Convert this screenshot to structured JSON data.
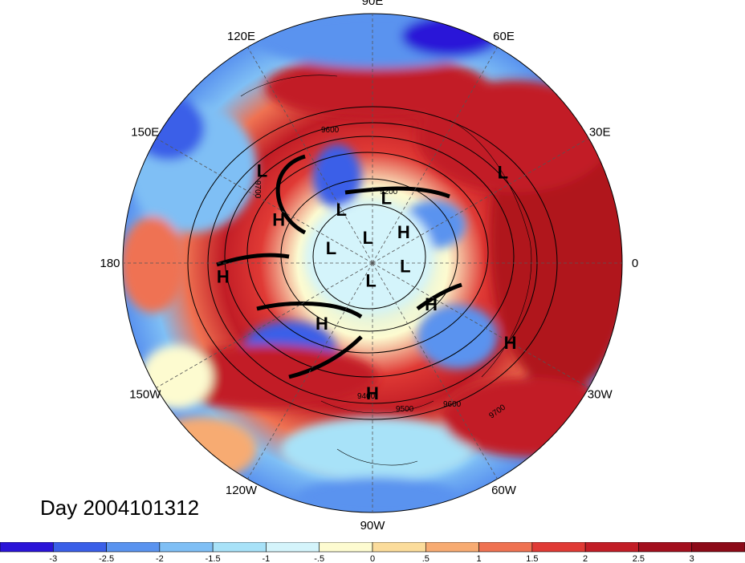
{
  "map": {
    "projection": "north polar stereographic",
    "longitude_labels": [
      {
        "text": "90E",
        "lon": 90
      },
      {
        "text": "60E",
        "lon": 60
      },
      {
        "text": "30E",
        "lon": 30
      },
      {
        "text": "0",
        "lon": 0
      },
      {
        "text": "30W",
        "lon": -30
      },
      {
        "text": "60W",
        "lon": -60
      },
      {
        "text": "90W",
        "lon": -90
      },
      {
        "text": "120W",
        "lon": -120
      },
      {
        "text": "150W",
        "lon": -150
      },
      {
        "text": "180",
        "lon": 180
      },
      {
        "text": "150E",
        "lon": 150
      },
      {
        "text": "120E",
        "lon": 120
      }
    ],
    "pressure_centers": [
      {
        "type": "L",
        "lon": 140,
        "lat": 30
      },
      {
        "type": "L",
        "lon": 35,
        "lat": 25
      },
      {
        "type": "L",
        "lon": 120,
        "lat": 62
      },
      {
        "type": "L",
        "lon": 78,
        "lat": 60
      },
      {
        "type": "L",
        "lon": 100,
        "lat": 78
      },
      {
        "type": "L",
        "lon": 160,
        "lat": 70
      },
      {
        "type": "L",
        "lon": -5,
        "lat": 75
      },
      {
        "type": "L",
        "lon": -95,
        "lat": 82
      },
      {
        "type": "H",
        "lon": 155,
        "lat": 45
      },
      {
        "type": "H",
        "lon": 45,
        "lat": 70
      },
      {
        "type": "H",
        "lon": -175,
        "lat": 28
      },
      {
        "type": "H",
        "lon": -130,
        "lat": 55
      },
      {
        "type": "H",
        "lon": -35,
        "lat": 58
      },
      {
        "type": "H",
        "lon": -30,
        "lat": 25
      },
      {
        "type": "H",
        "lon": -90,
        "lat": 35
      }
    ],
    "contour_labels": [
      "9600",
      "9700",
      "9200",
      "9400",
      "9500",
      "9600",
      "9700"
    ]
  },
  "title": "Day 2004101312",
  "colorbar": {
    "levels": [
      "-3",
      "-2.5",
      "-2",
      "-1.5",
      "-1",
      "-.5",
      "0",
      ".5",
      "1",
      "1.5",
      "2",
      "2.5",
      "3"
    ],
    "colors": [
      "#2a14d8",
      "#3a5fe8",
      "#5a93ef",
      "#7fbff5",
      "#a8e2f8",
      "#d4f4fb",
      "#fdfbd0",
      "#fbdc9b",
      "#f7ab72",
      "#ef7252",
      "#e03a35",
      "#c21d26",
      "#a30f1e",
      "#8c0a18"
    ]
  }
}
